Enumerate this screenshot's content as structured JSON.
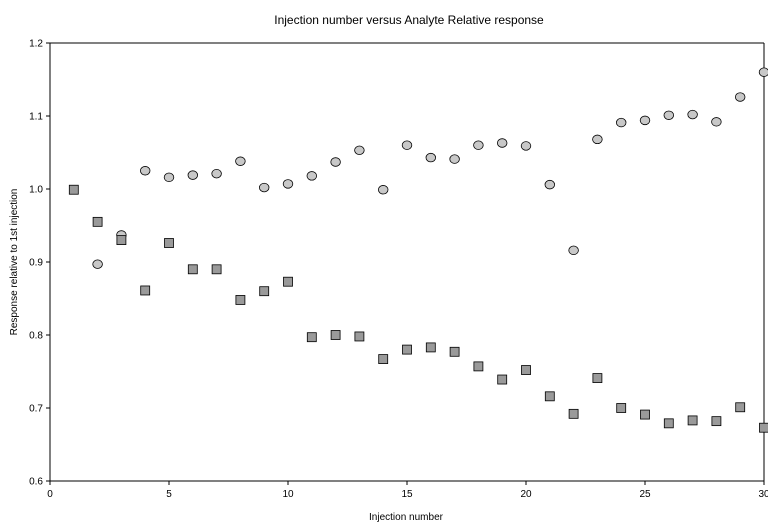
{
  "chart_data": {
    "type": "scatter",
    "title": "Injection number versus Analyte Relative response",
    "xlabel": "Injection number",
    "ylabel": "Response relative to 1st injection",
    "xlim": [
      0,
      30
    ],
    "ylim": [
      0.6,
      1.2
    ],
    "x_ticks": [
      "0",
      "5",
      "10",
      "15",
      "20",
      "25",
      "30"
    ],
    "y_ticks": [
      "0.6",
      "0.7",
      "0.8",
      "0.9",
      "1.0",
      "1.1",
      "1.2"
    ],
    "grid": false,
    "legend": "none",
    "series": [
      {
        "marker": "circle",
        "color": "#c8c8c8",
        "points": [
          [
            2,
            0.897
          ],
          [
            3,
            0.937
          ],
          [
            4,
            1.025
          ],
          [
            5,
            1.016
          ],
          [
            6,
            1.019
          ],
          [
            7,
            1.021
          ],
          [
            8,
            1.038
          ],
          [
            9,
            1.002
          ],
          [
            10,
            1.007
          ],
          [
            11,
            1.018
          ],
          [
            12,
            1.037
          ],
          [
            13,
            1.053
          ],
          [
            14,
            0.999
          ],
          [
            15,
            1.06
          ],
          [
            16,
            1.043
          ],
          [
            17,
            1.041
          ],
          [
            18,
            1.06
          ],
          [
            19,
            1.063
          ],
          [
            20,
            1.059
          ],
          [
            21,
            1.006
          ],
          [
            22,
            0.916
          ],
          [
            23,
            1.068
          ],
          [
            24,
            1.091
          ],
          [
            25,
            1.094
          ],
          [
            26,
            1.101
          ],
          [
            27,
            1.102
          ],
          [
            28,
            1.092
          ],
          [
            29,
            1.126
          ],
          [
            30,
            1.16
          ]
        ]
      },
      {
        "marker": "square",
        "color": "#9a9a9a",
        "points": [
          [
            1,
            0.999
          ],
          [
            2,
            0.955
          ],
          [
            3,
            0.93
          ],
          [
            4,
            0.861
          ],
          [
            5,
            0.926
          ],
          [
            6,
            0.89
          ],
          [
            7,
            0.89
          ],
          [
            8,
            0.848
          ],
          [
            9,
            0.86
          ],
          [
            10,
            0.873
          ],
          [
            11,
            0.797
          ],
          [
            12,
            0.8
          ],
          [
            13,
            0.798
          ],
          [
            14,
            0.767
          ],
          [
            15,
            0.78
          ],
          [
            16,
            0.783
          ],
          [
            17,
            0.777
          ],
          [
            18,
            0.757
          ],
          [
            19,
            0.739
          ],
          [
            20,
            0.752
          ],
          [
            21,
            0.716
          ],
          [
            22,
            0.692
          ],
          [
            23,
            0.741
          ],
          [
            24,
            0.7
          ],
          [
            25,
            0.691
          ],
          [
            26,
            0.679
          ],
          [
            27,
            0.683
          ],
          [
            28,
            0.682
          ],
          [
            29,
            0.701
          ],
          [
            30,
            0.673
          ]
        ]
      }
    ]
  }
}
